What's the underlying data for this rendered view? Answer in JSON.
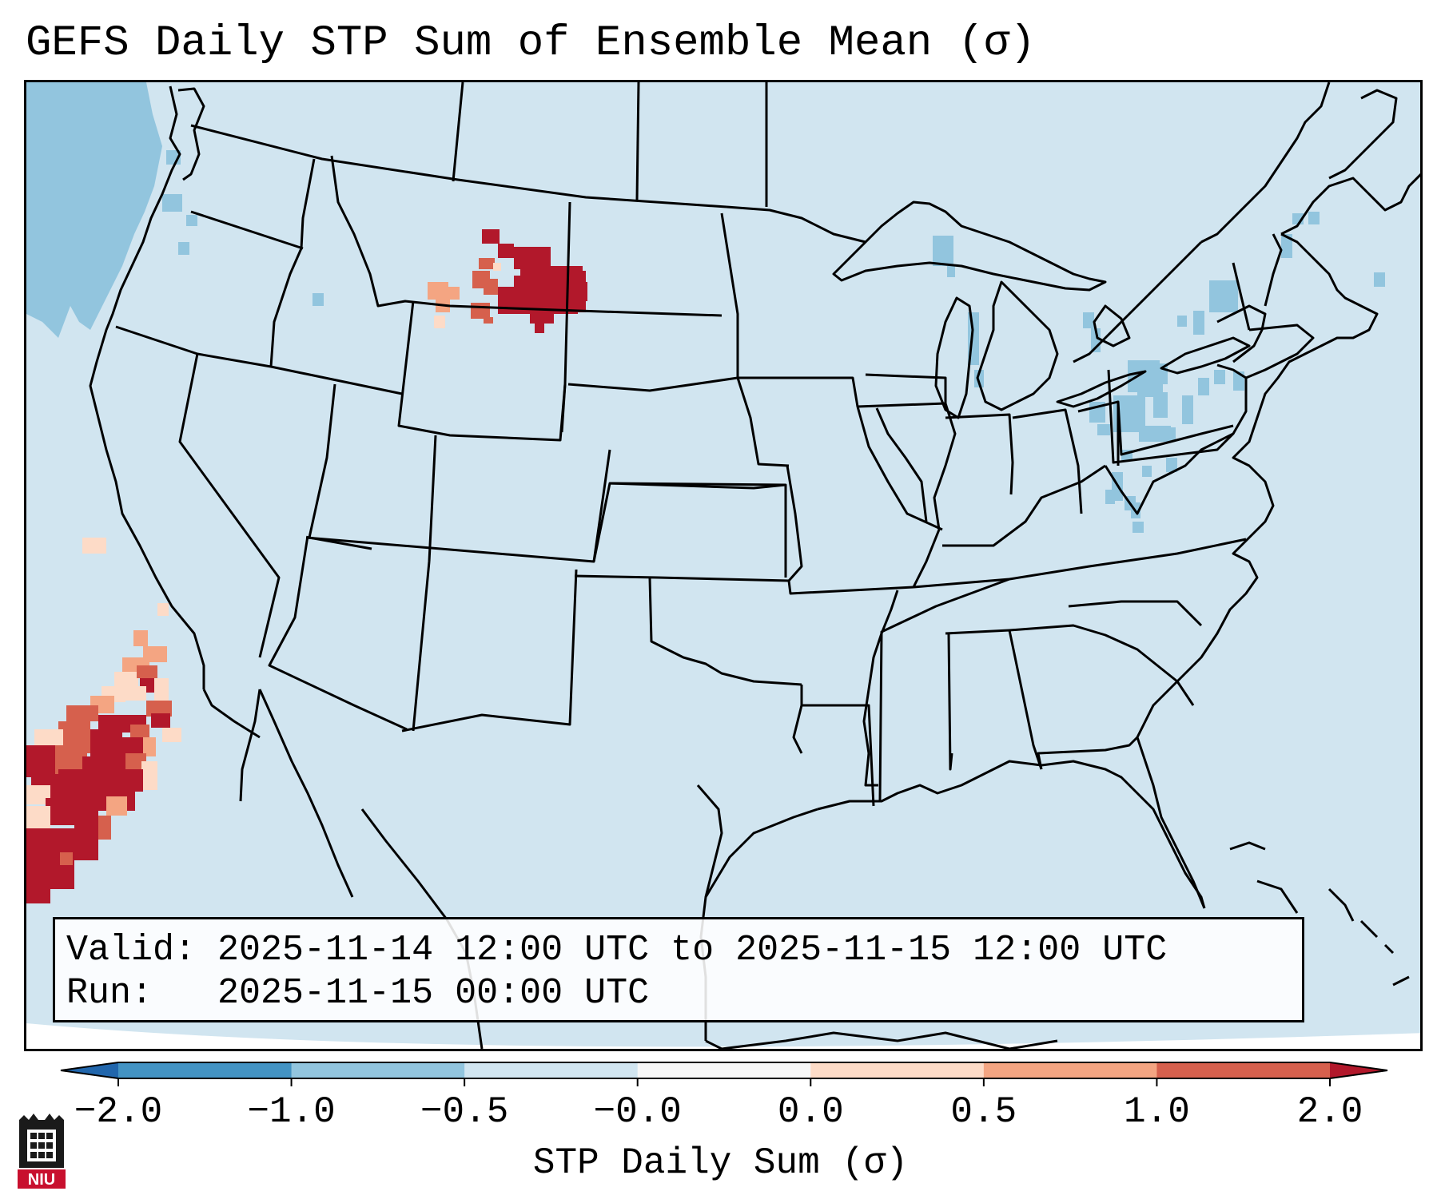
{
  "title": "GEFS Daily STP Sum of Ensemble Mean (σ)",
  "info": {
    "valid_line": "Valid: 2025-11-14 12:00 UTC to 2025-11-15 12:00 UTC",
    "run_line": "Run:   2025-11-15 00:00 UTC"
  },
  "colorbar": {
    "label": "STP Daily Sum (σ)",
    "ticks": [
      "−2.0",
      "−1.0",
      "−0.5",
      "−0.0",
      "0.0",
      "0.5",
      "1.0",
      "2.0"
    ],
    "bins": [
      {
        "from": -2.0,
        "to": -1.0,
        "color": "#4393c3"
      },
      {
        "from": -1.0,
        "to": -0.5,
        "color": "#92c5de"
      },
      {
        "from": -0.5,
        "to": 0.0,
        "color": "#d1e5f0"
      },
      {
        "from": 0.0,
        "to": 0.0,
        "color": "#f7f7f7"
      },
      {
        "from": 0.0,
        "to": 0.5,
        "color": "#fddbc7"
      },
      {
        "from": 0.5,
        "to": 1.0,
        "color": "#f4a582"
      },
      {
        "from": 1.0,
        "to": 2.0,
        "color": "#d6604d"
      }
    ],
    "under_color": "#2166ac",
    "over_color": "#b2182b"
  },
  "colors": {
    "land_background": "#d1e5f0",
    "ocean_negative": "#92c5de",
    "positive_high": "#b2182b",
    "positive_mid": "#d6604d",
    "positive_low": "#f4a582",
    "positive_weak": "#fddbc7"
  },
  "logo": {
    "text": "NIU",
    "icon": "university-tower-icon"
  }
}
